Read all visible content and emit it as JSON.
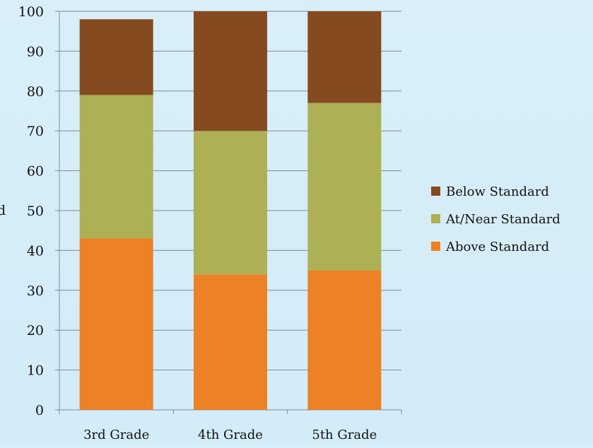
{
  "chart_data": {
    "type": "bar",
    "stacked": true,
    "categories": [
      "3rd Grade",
      "4th Grade",
      "5th Grade"
    ],
    "series": [
      {
        "name": "Above Standard",
        "color": "#ec8125",
        "values": [
          43,
          34,
          35
        ]
      },
      {
        "name": "At/Near Standard",
        "color": "#adb055",
        "values": [
          36,
          36,
          42
        ]
      },
      {
        "name": "Below Standard",
        "color": "#854a1f",
        "values": [
          19,
          30,
          23
        ]
      }
    ],
    "ylim": [
      0,
      100
    ],
    "yticks": [
      0,
      10,
      20,
      30,
      40,
      50,
      60,
      70,
      80,
      90,
      100
    ],
    "ylabel_fragment": "d",
    "grid": true,
    "legend": {
      "position": "right",
      "order": [
        "Below Standard",
        "At/Near Standard",
        "Above Standard"
      ]
    }
  }
}
